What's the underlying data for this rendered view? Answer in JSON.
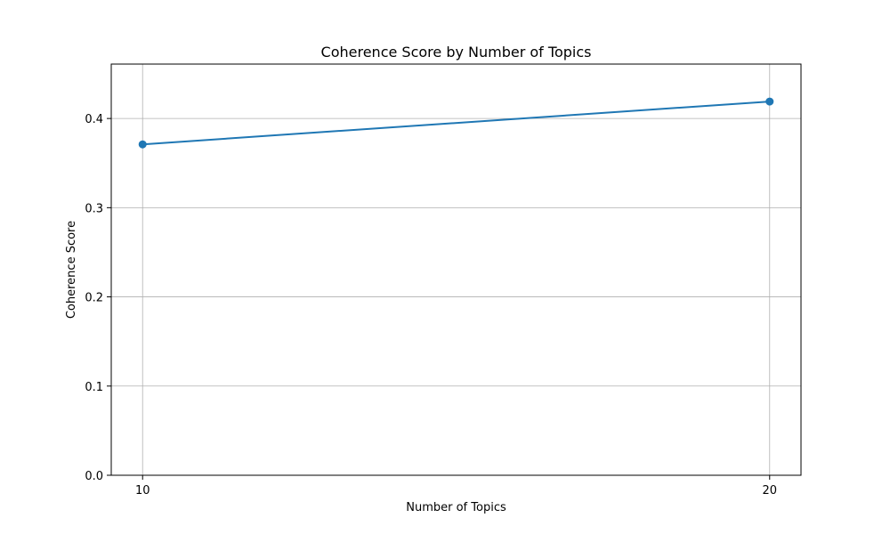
{
  "chart_data": {
    "type": "line",
    "title": "Coherence Score by Number of Topics",
    "xlabel": "Number of Topics",
    "ylabel": "Coherence Score",
    "x": [
      10,
      20
    ],
    "series": [
      {
        "values": [
          0.371,
          0.419
        ]
      }
    ],
    "xticks": [
      "10",
      "20"
    ],
    "yticks": [
      "0.0",
      "0.1",
      "0.2",
      "0.3",
      "0.4"
    ],
    "xlim": [
      9.5,
      20.5
    ],
    "ylim": [
      0,
      0.461
    ],
    "grid": true,
    "marker": "circle",
    "line_color": "#1f77b4"
  }
}
